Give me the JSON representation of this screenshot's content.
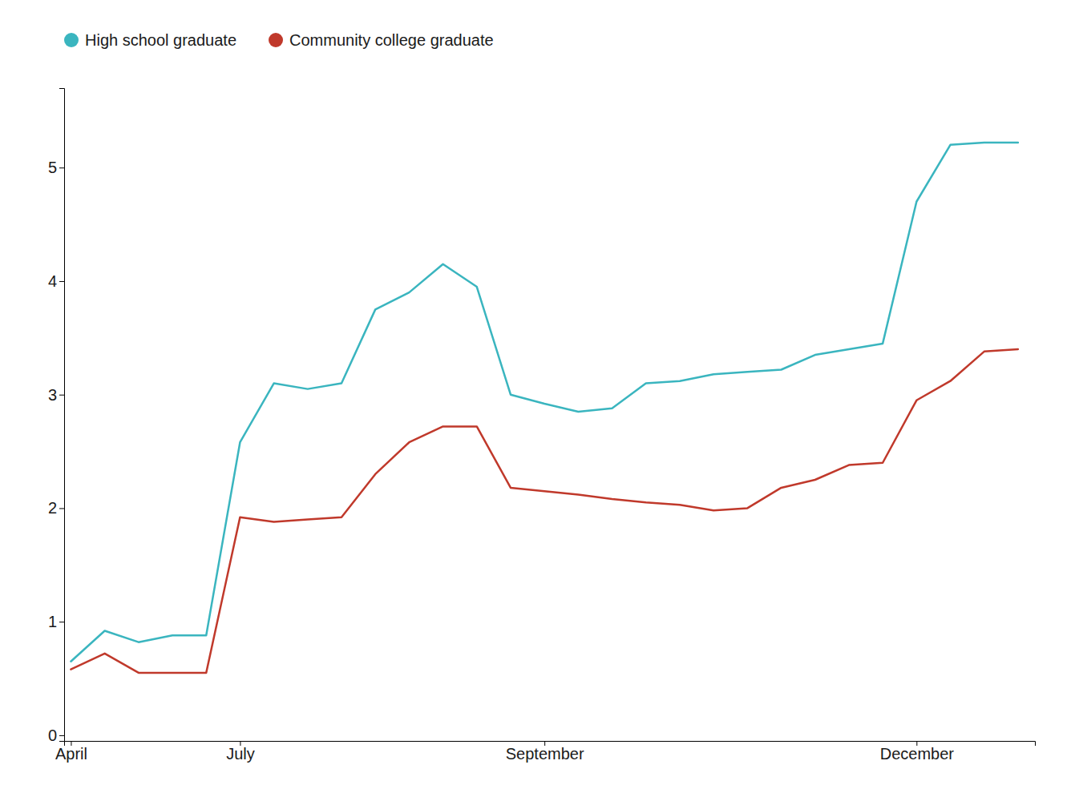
{
  "chart_data": {
    "type": "line",
    "x": [
      0,
      1,
      2,
      3,
      4,
      5,
      6,
      7,
      8,
      9,
      10,
      11,
      12,
      13,
      14,
      15,
      16,
      17,
      18,
      19,
      20,
      21,
      22,
      23,
      24,
      25,
      26,
      27,
      28
    ],
    "series": [
      {
        "name": "High school graduate",
        "color": "#3ab5bf",
        "values": [
          0.65,
          0.92,
          0.82,
          0.88,
          0.88,
          2.58,
          3.1,
          3.05,
          3.1,
          3.75,
          3.9,
          4.15,
          3.95,
          3.0,
          2.92,
          2.85,
          2.88,
          3.1,
          3.12,
          3.18,
          3.2,
          3.22,
          3.35,
          3.4,
          3.45,
          4.7,
          5.2,
          5.22,
          5.22
        ]
      },
      {
        "name": "Community college graduate",
        "color": "#c0392b",
        "values": [
          0.58,
          0.72,
          0.55,
          0.55,
          0.55,
          1.92,
          1.88,
          1.9,
          1.92,
          2.3,
          2.58,
          2.72,
          2.72,
          2.18,
          2.15,
          2.12,
          2.08,
          2.05,
          2.03,
          1.98,
          2.0,
          2.18,
          2.25,
          2.38,
          2.4,
          2.95,
          3.12,
          3.38,
          3.4
        ]
      }
    ],
    "xlim": [
      -0.2,
      28.5
    ],
    "xticks": [
      {
        "value": 0,
        "label": "April"
      },
      {
        "value": 5,
        "label": "July"
      },
      {
        "value": 14,
        "label": "September"
      },
      {
        "value": 25,
        "label": "December"
      }
    ],
    "ylim": [
      -0.05,
      5.7
    ],
    "yticks": [
      0,
      1,
      2,
      3,
      4,
      5
    ],
    "grid": false,
    "legend": "upper left"
  }
}
